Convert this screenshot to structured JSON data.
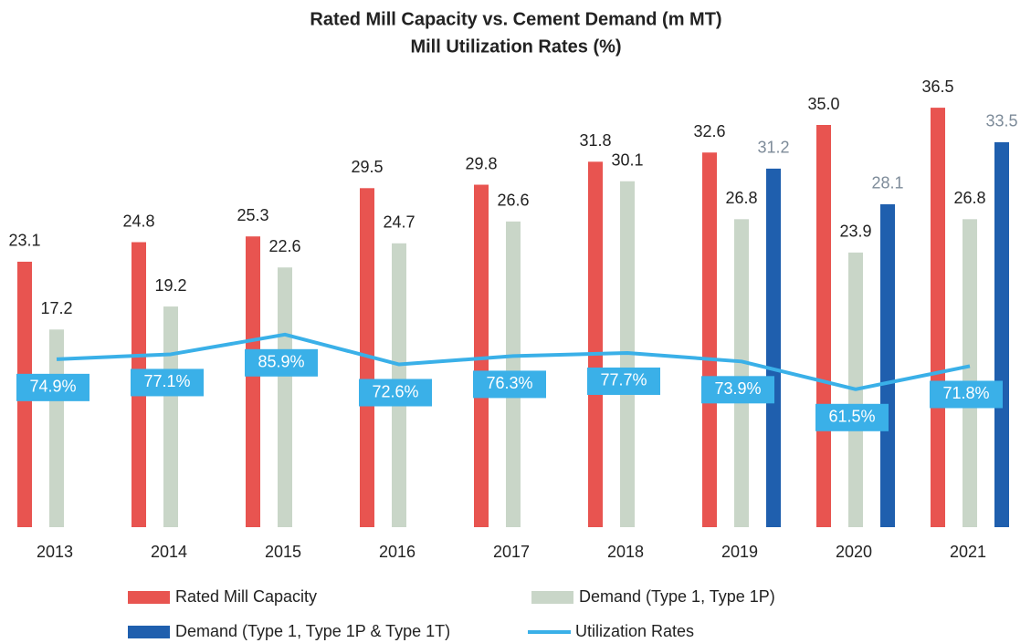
{
  "chart_data": {
    "type": "bar",
    "title": "Rated Mill Capacity vs. Cement Demand (m MT)",
    "subtitle": "Mill Utilization Rates (%)",
    "categories": [
      "2013",
      "2014",
      "2015",
      "2016",
      "2017",
      "2018",
      "2019",
      "2020",
      "2021"
    ],
    "ylim": [
      0,
      40
    ],
    "y2lim": [
      0,
      205
    ],
    "series": [
      {
        "name": "Rated Mill Capacity",
        "color": "#e85450",
        "type": "bar",
        "values": [
          23.1,
          24.8,
          25.3,
          29.5,
          29.8,
          31.8,
          32.6,
          35.0,
          36.5
        ],
        "value_labels": [
          "23.1",
          "24.8",
          "25.3",
          "29.5",
          "29.8",
          "31.8",
          "32.6",
          "35.0",
          "36.5"
        ]
      },
      {
        "name": "Demand (Type 1, Type 1P)",
        "color": "#c9d6c8",
        "type": "bar",
        "values": [
          17.2,
          19.2,
          22.6,
          24.7,
          26.6,
          30.1,
          26.8,
          23.9,
          26.8
        ]
      },
      {
        "name": "Demand (Type 1, Type 1P & Type 1T)",
        "color": "#1f5fae",
        "type": "bar",
        "values": [
          null,
          null,
          null,
          null,
          null,
          null,
          31.2,
          28.1,
          33.5
        ]
      },
      {
        "name": "Utilization Rates",
        "color": "#3ab0e8",
        "type": "line",
        "axis": "y2",
        "values": [
          74.9,
          77.1,
          85.9,
          72.6,
          76.3,
          77.7,
          73.9,
          61.5,
          71.8
        ],
        "value_labels": [
          "74.9%",
          "77.1%",
          "85.9%",
          "72.6%",
          "76.3%",
          "77.7%",
          "73.9%",
          "61.5%",
          "71.8%"
        ]
      }
    ]
  }
}
